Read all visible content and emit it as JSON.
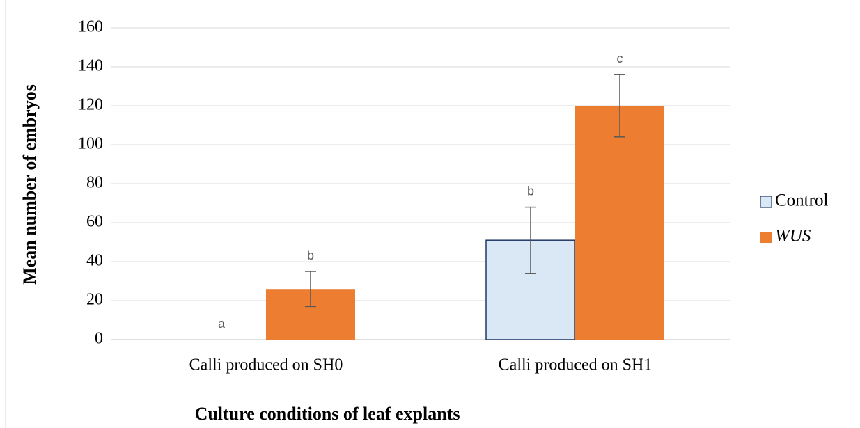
{
  "chart_data": {
    "type": "bar",
    "categories": [
      "Calli produced on SH0",
      "Calli produced on SH1"
    ],
    "series": [
      {
        "name": "Control",
        "color": "#dae8f5",
        "edge": "#203864",
        "values": [
          0,
          51
        ],
        "errors": [
          null,
          17
        ],
        "annotations": [
          "a",
          "b"
        ]
      },
      {
        "name": "WUS",
        "color": "#ed7d31",
        "values": [
          26,
          120
        ],
        "errors": [
          9,
          16
        ],
        "annotations": [
          "b",
          "c"
        ],
        "italic": true
      }
    ],
    "ylabel": "Mean number of embryos",
    "xlabel": "Culture conditions of leaf explants",
    "ylim": [
      0,
      160
    ],
    "yticks": [
      0,
      20,
      40,
      60,
      80,
      100,
      120,
      140,
      160
    ],
    "grid": true,
    "legend": "right"
  }
}
